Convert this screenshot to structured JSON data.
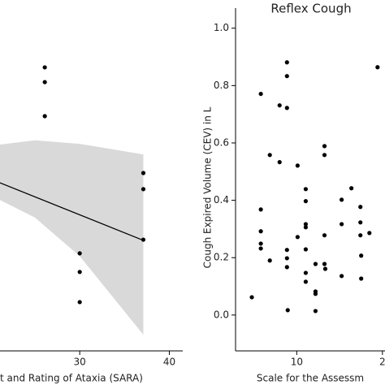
{
  "chart_data": [
    {
      "type": "scatter",
      "xlabel": "t and Rating of Ataxia (SARA)",
      "xlim": [
        21.1,
        41.5
      ],
      "ylim": [
        0,
        1
      ],
      "xticks": [
        30,
        40
      ],
      "color": "#000000",
      "x": [
        26.1,
        26.1,
        26.1,
        37.1,
        37.1,
        37.1,
        30,
        30,
        30
      ],
      "values": [
        0.808,
        0.766,
        0.669,
        0.507,
        0.461,
        0.317,
        0.278,
        0.225,
        0.139
      ],
      "fit": {
        "x": [
          21.1,
          37.1
        ],
        "y": [
          0.479,
          0.315
        ]
      },
      "band": {
        "x": [
          21.1,
          25,
          30,
          37.1
        ],
        "upper": [
          0.588,
          0.6,
          0.59,
          0.56
        ],
        "lower": [
          0.43,
          0.38,
          0.27,
          0.046
        ],
        "color": "#d9d9d9"
      }
    },
    {
      "type": "scatter",
      "title": "Reflex Cough",
      "xlabel": "Scale for the Assessm",
      "ylabel": "Cough Expired Volume (CEV) in L",
      "xlim": [
        2.86,
        20.3
      ],
      "ylim": [
        -0.125,
        1.07
      ],
      "xticks": [
        10,
        {
          "value": 20,
          "label": "2"
        }
      ],
      "yticks": [
        {
          "value": 0,
          "label": "0.0"
        },
        0.2,
        0.4,
        0.6,
        0.8,
        {
          "value": 1,
          "label": "1.0"
        }
      ],
      "color": "#000000",
      "x": [
        4.76,
        5.81,
        5.81,
        5.81,
        5.81,
        5.81,
        6.86,
        6.86,
        8.0,
        8.0,
        8.86,
        8.86,
        8.86,
        8.86,
        8.86,
        8.86,
        8.95,
        10.1,
        10.1,
        11.05,
        11.05,
        11.05,
        11.05,
        11.05,
        11.05,
        11.05,
        12.19,
        12.19,
        12.19,
        12.19,
        13.24,
        13.24,
        13.24,
        13.24,
        13.33,
        15.24,
        15.24,
        15.24,
        16.38,
        17.43,
        17.43,
        17.43,
        17.52,
        17.52,
        18.48,
        19.43
      ],
      "values": [
        0.062,
        0.771,
        0.368,
        0.292,
        0.249,
        0.232,
        0.19,
        0.558,
        0.731,
        0.533,
        0.881,
        0.833,
        0.722,
        0.227,
        0.198,
        0.167,
        0.017,
        0.521,
        0.272,
        0.439,
        0.397,
        0.317,
        0.306,
        0.229,
        0.116,
        0.147,
        0.178,
        0.082,
        0.074,
        0.014,
        0.589,
        0.558,
        0.278,
        0.178,
        0.161,
        0.402,
        0.317,
        0.136,
        0.442,
        0.377,
        0.323,
        0.278,
        0.207,
        0.127,
        0.286,
        0.864
      ]
    }
  ]
}
